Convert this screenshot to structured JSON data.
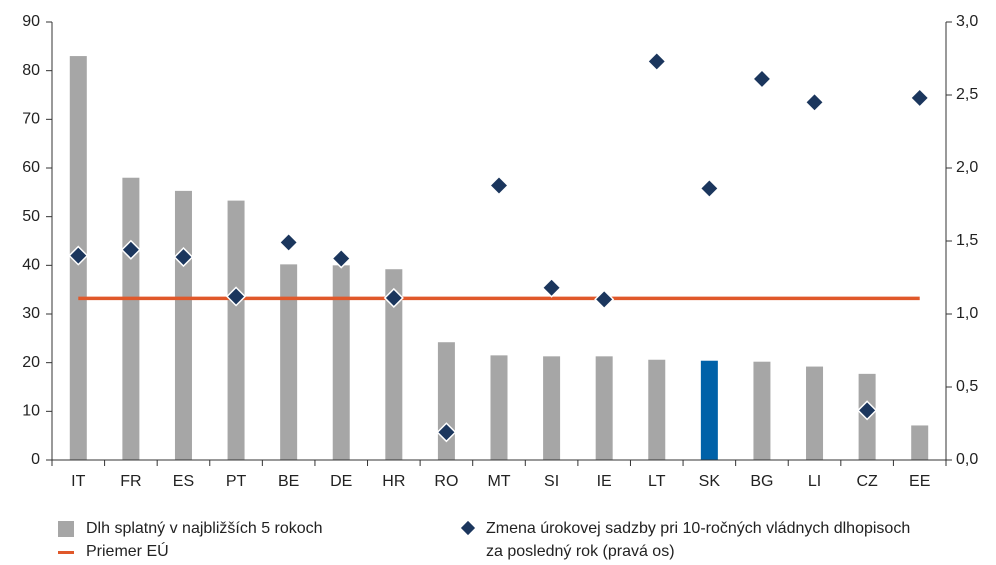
{
  "chart_data": {
    "type": "bar",
    "categories": [
      "IT",
      "FR",
      "ES",
      "PT",
      "BE",
      "DE",
      "HR",
      "RO",
      "MT",
      "SI",
      "IE",
      "LT",
      "SK",
      "BG",
      "LI",
      "CZ",
      "EE"
    ],
    "series": [
      {
        "name": "Dlh splatný v najbližších 5 rokoch",
        "type": "bar",
        "color": "#a6a6a6",
        "colors": [
          "#a6a6a6",
          "#a6a6a6",
          "#a6a6a6",
          "#a6a6a6",
          "#a6a6a6",
          "#a6a6a6",
          "#a6a6a6",
          "#a6a6a6",
          "#a6a6a6",
          "#a6a6a6",
          "#a6a6a6",
          "#a6a6a6",
          "#0061a8",
          "#a6a6a6",
          "#a6a6a6",
          "#a6a6a6",
          "#a6a6a6"
        ],
        "values": [
          83,
          58,
          55.3,
          53.3,
          40.2,
          40,
          39.2,
          24.2,
          21.5,
          21.3,
          21.3,
          20.6,
          20.4,
          20.2,
          19.2,
          17.7,
          7.1
        ]
      },
      {
        "name": "Priemer EÚ",
        "type": "line",
        "color": "#e0582a",
        "values": [
          33.2,
          33.2,
          33.2,
          33.2,
          33.2,
          33.2,
          33.2,
          33.2,
          33.2,
          33.2,
          33.2,
          33.2,
          33.2,
          33.2,
          33.2,
          33.2,
          33.2
        ]
      },
      {
        "name": "Zmena úrokovej sadzby pri 10-ročných vládnych dlhopisoch za posledný rok (pravá os)",
        "type": "scatter",
        "axis": "y2",
        "color": "#1b365d",
        "values": [
          1.4,
          1.44,
          1.39,
          1.12,
          1.49,
          1.38,
          1.11,
          0.19,
          1.88,
          1.18,
          1.1,
          2.73,
          1.86,
          2.61,
          2.45,
          0.34,
          2.48
        ]
      }
    ],
    "ylim": [
      0,
      90
    ],
    "yticks": [
      0,
      10,
      20,
      30,
      40,
      50,
      60,
      70,
      80,
      90
    ],
    "y2lim": [
      0,
      3
    ],
    "y2ticks": [
      {
        "value": 0,
        "label": "0,0"
      },
      {
        "value": 0.5,
        "label": "0,5"
      },
      {
        "value": 1,
        "label": "1,0"
      },
      {
        "value": 1.5,
        "label": "1,5"
      },
      {
        "value": 2,
        "label": "2,0"
      },
      {
        "value": 2.5,
        "label": "2,5"
      },
      {
        "value": 3,
        "label": "3,0"
      }
    ],
    "grid": false
  }
}
